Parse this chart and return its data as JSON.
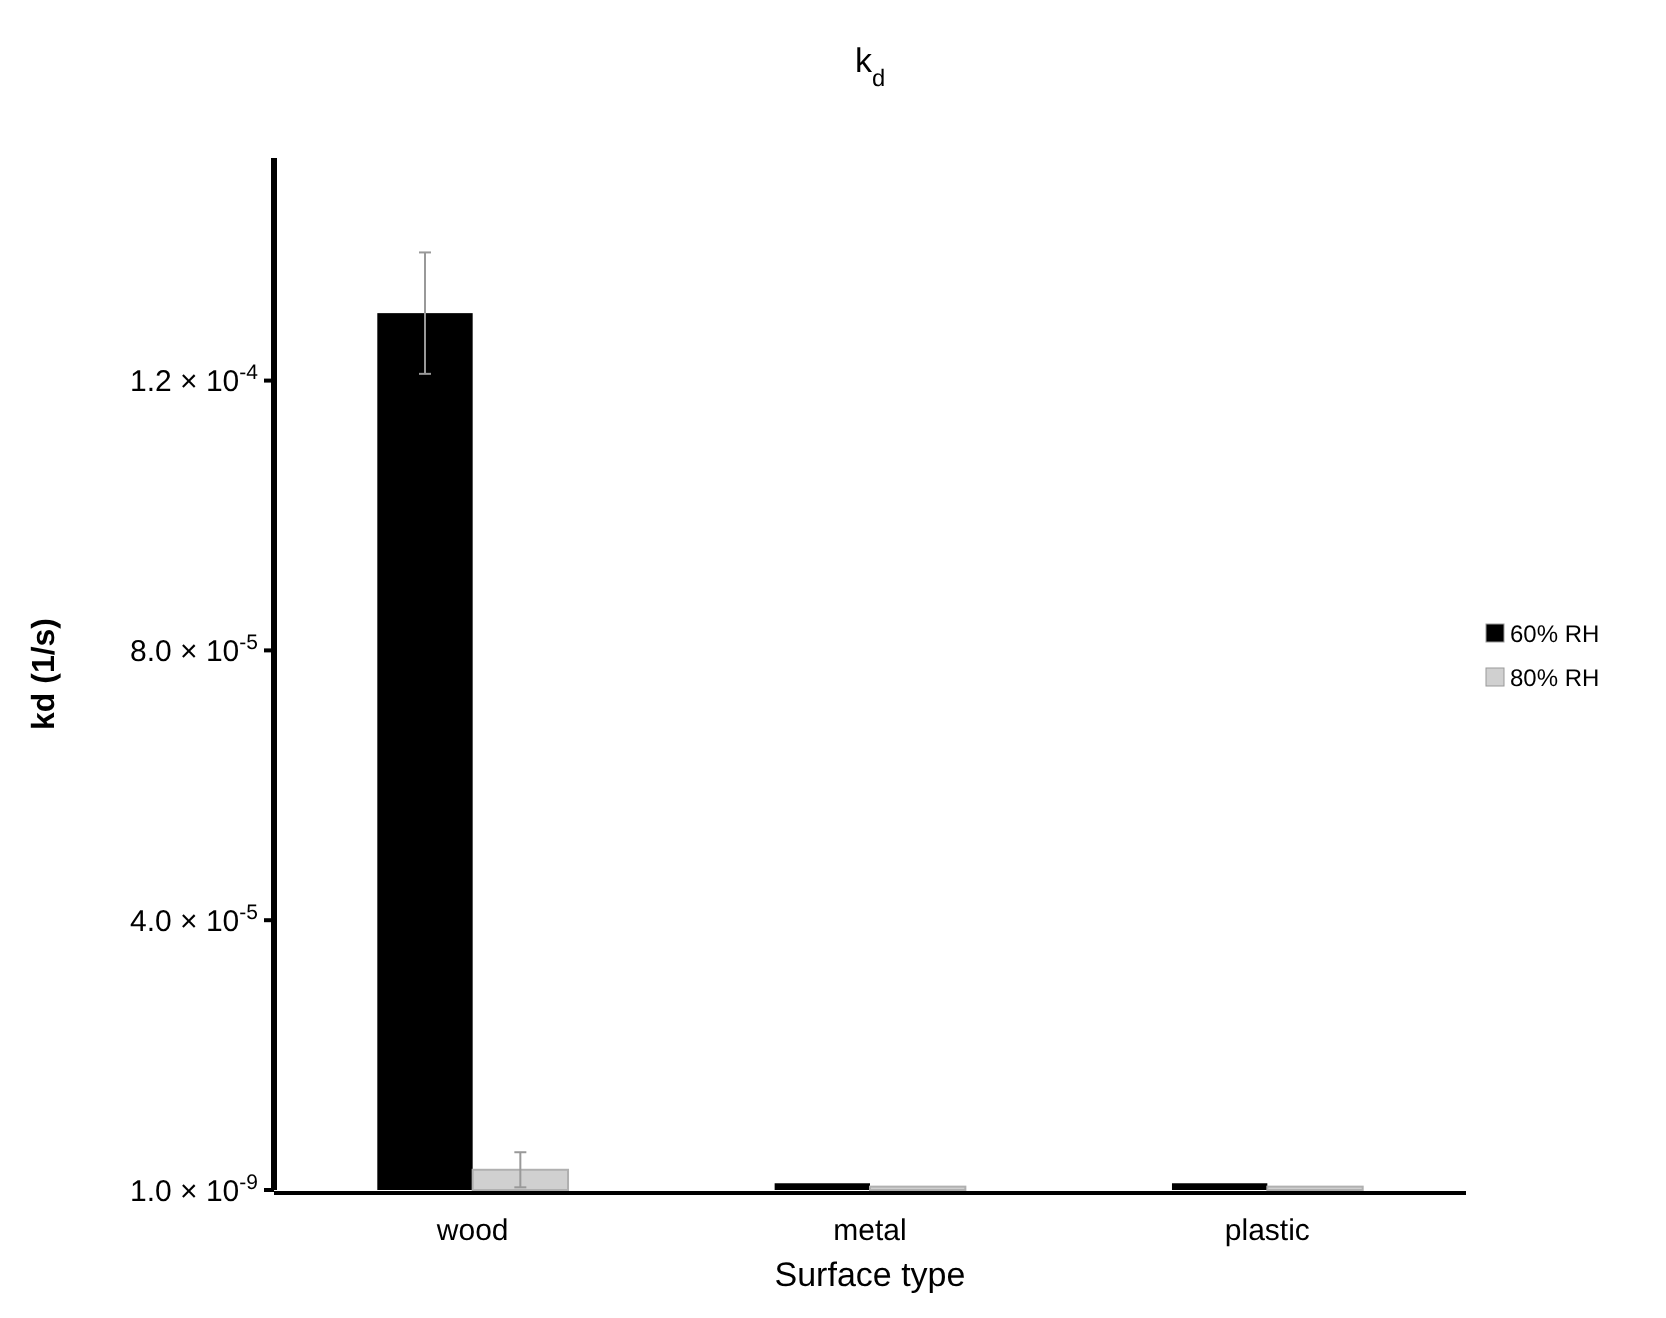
{
  "chart_data": {
    "type": "bar",
    "title": "k$_{d}$",
    "xlabel": "Surface type",
    "ylabel": "kd (1/s)",
    "categories": [
      "wood",
      "metal",
      "plastic"
    ],
    "series": [
      {
        "name": "60% RH",
        "color": "#000000",
        "values": [
          0.00013,
          1e-06,
          1e-06
        ],
        "errors": [
          9e-06,
          null,
          null
        ]
      },
      {
        "name": "80% RH",
        "color": "#d0d0d0",
        "values": [
          3e-06,
          5e-07,
          5e-07
        ],
        "errors": [
          2.6e-06,
          null,
          null
        ]
      }
    ],
    "ylim": [
      1e-09,
      0.000153
    ],
    "yticks": [
      {
        "value": 1e-09,
        "label": "1.0 × 10$^{-9}$"
      },
      {
        "value": 4e-05,
        "label": "4.0 × 10$^{-5}$"
      },
      {
        "value": 8e-05,
        "label": "8.0 × 10$^{-5}$"
      },
      {
        "value": 0.00012,
        "label": "1.2 × 10$^{-4}$"
      }
    ],
    "grid": false,
    "legend": "right"
  }
}
